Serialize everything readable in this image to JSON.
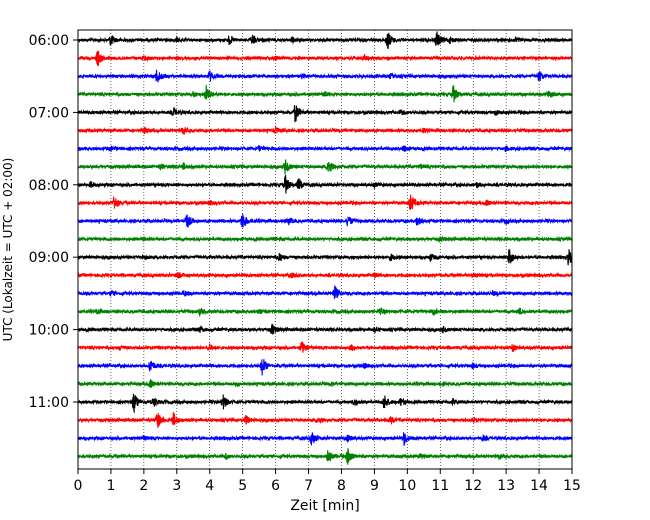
{
  "chart_data": {
    "type": "line",
    "title": "",
    "xlabel": "Zeit  [min]",
    "ylabel": "UTC (Lokalzeit = UTC + 02:00)",
    "xlim": [
      0,
      15
    ],
    "x_ticks": [
      0,
      1,
      2,
      3,
      4,
      5,
      6,
      7,
      8,
      9,
      10,
      11,
      12,
      13,
      14,
      15
    ],
    "x_tick_labels": [
      "0",
      "1",
      "2",
      "3",
      "4",
      "5",
      "6",
      "7",
      "8",
      "9",
      "10",
      "11",
      "12",
      "13",
      "14",
      "15"
    ],
    "y_tick_labels": [
      "06:00",
      "07:00",
      "08:00",
      "09:00",
      "10:00",
      "11:00"
    ],
    "grid": "vertical-dotted",
    "trace_minutes": 15,
    "row_color_cycle": [
      "#000000",
      "#ff0000",
      "#0000ff",
      "#008000"
    ],
    "rows": [
      {
        "start": "06:00",
        "events": [
          [
            1.0,
            0.55
          ],
          [
            3.0,
            0.2
          ],
          [
            4.6,
            0.45
          ],
          [
            5.3,
            0.5
          ],
          [
            6.5,
            0.25
          ],
          [
            9.4,
            1.0
          ],
          [
            10.9,
            0.9
          ],
          [
            11.3,
            0.3
          ],
          [
            13.3,
            0.25
          ]
        ]
      },
      {
        "start": "06:15",
        "events": [
          [
            0.6,
            0.8
          ],
          [
            2.0,
            0.2
          ],
          [
            6.0,
            0.2
          ],
          [
            8.7,
            0.25
          ]
        ]
      },
      {
        "start": "06:30",
        "events": [
          [
            2.4,
            0.7
          ],
          [
            4.0,
            0.55
          ],
          [
            6.8,
            0.2
          ],
          [
            9.5,
            0.2
          ],
          [
            14.0,
            0.55
          ]
        ]
      },
      {
        "start": "06:45",
        "events": [
          [
            3.5,
            0.2
          ],
          [
            3.9,
            0.9
          ],
          [
            7.5,
            0.2
          ],
          [
            11.4,
            0.9
          ],
          [
            14.3,
            0.35
          ]
        ]
      },
      {
        "start": "07:00",
        "events": [
          [
            2.9,
            0.45
          ],
          [
            6.6,
            1.0
          ],
          [
            9.8,
            0.3
          ],
          [
            12.7,
            0.25
          ]
        ]
      },
      {
        "start": "07:15",
        "events": [
          [
            2.0,
            0.3
          ],
          [
            3.2,
            0.45
          ],
          [
            6.0,
            0.3
          ],
          [
            10.5,
            0.2
          ]
        ]
      },
      {
        "start": "07:30",
        "events": [
          [
            1.0,
            0.2
          ],
          [
            5.5,
            0.2
          ],
          [
            9.9,
            0.3
          ],
          [
            13.0,
            0.2
          ]
        ]
      },
      {
        "start": "07:45",
        "events": [
          [
            2.5,
            0.3
          ],
          [
            3.2,
            0.35
          ],
          [
            6.3,
            0.8
          ],
          [
            7.6,
            1.0
          ],
          [
            10.4,
            0.2
          ]
        ]
      },
      {
        "start": "08:00",
        "events": [
          [
            0.4,
            0.3
          ],
          [
            6.3,
            0.95
          ],
          [
            6.7,
            0.6
          ],
          [
            9.0,
            0.2
          ],
          [
            12.1,
            0.25
          ]
        ]
      },
      {
        "start": "08:15",
        "events": [
          [
            1.1,
            0.8
          ],
          [
            4.0,
            0.2
          ],
          [
            10.1,
            1.0
          ],
          [
            12.4,
            0.25
          ]
        ]
      },
      {
        "start": "08:30",
        "events": [
          [
            3.3,
            0.85
          ],
          [
            5.0,
            0.95
          ],
          [
            6.4,
            0.3
          ],
          [
            8.2,
            0.55
          ],
          [
            10.3,
            0.4
          ],
          [
            13.0,
            0.2
          ]
        ]
      },
      {
        "start": "08:45",
        "events": [
          [
            2.0,
            0.15
          ],
          [
            6.0,
            0.15
          ],
          [
            11.0,
            0.15
          ]
        ]
      },
      {
        "start": "09:00",
        "events": [
          [
            2.0,
            0.25
          ],
          [
            6.1,
            0.4
          ],
          [
            9.5,
            0.3
          ],
          [
            10.7,
            0.35
          ],
          [
            13.1,
            0.9
          ],
          [
            14.9,
            0.8
          ]
        ]
      },
      {
        "start": "09:15",
        "events": [
          [
            3.0,
            0.45
          ],
          [
            6.5,
            0.2
          ],
          [
            9.0,
            0.2
          ],
          [
            12.0,
            0.2
          ]
        ]
      },
      {
        "start": "09:30",
        "events": [
          [
            1.0,
            0.2
          ],
          [
            3.2,
            0.25
          ],
          [
            7.8,
            0.75
          ],
          [
            12.6,
            0.2
          ]
        ]
      },
      {
        "start": "09:45",
        "events": [
          [
            0.6,
            0.3
          ],
          [
            3.7,
            0.3
          ],
          [
            5.5,
            0.25
          ],
          [
            9.2,
            0.3
          ],
          [
            10.8,
            0.3
          ],
          [
            13.4,
            0.3
          ]
        ]
      },
      {
        "start": "10:00",
        "events": [
          [
            3.7,
            0.25
          ],
          [
            5.9,
            0.55
          ],
          [
            9.0,
            0.2
          ],
          [
            11.1,
            0.3
          ]
        ]
      },
      {
        "start": "10:15",
        "events": [
          [
            1.3,
            0.2
          ],
          [
            4.0,
            0.3
          ],
          [
            6.8,
            0.6
          ],
          [
            8.3,
            0.3
          ],
          [
            13.2,
            0.3
          ]
        ]
      },
      {
        "start": "10:30",
        "events": [
          [
            2.2,
            0.7
          ],
          [
            5.6,
            1.0
          ],
          [
            8.7,
            0.2
          ],
          [
            12.0,
            0.2
          ]
        ]
      },
      {
        "start": "10:45",
        "events": [
          [
            2.2,
            0.4
          ],
          [
            4.8,
            0.2
          ],
          [
            7.7,
            0.2
          ],
          [
            11.0,
            0.2
          ]
        ]
      },
      {
        "start": "11:00",
        "events": [
          [
            1.7,
            1.0
          ],
          [
            2.3,
            0.5
          ],
          [
            4.4,
            0.8
          ],
          [
            8.4,
            0.35
          ],
          [
            9.3,
            0.8
          ],
          [
            9.8,
            0.4
          ],
          [
            11.4,
            0.3
          ]
        ]
      },
      {
        "start": "11:15",
        "events": [
          [
            2.4,
            1.0
          ],
          [
            2.9,
            0.75
          ],
          [
            5.1,
            0.45
          ],
          [
            7.3,
            0.35
          ],
          [
            9.5,
            0.3
          ],
          [
            12.0,
            0.2
          ]
        ]
      },
      {
        "start": "11:30",
        "events": [
          [
            2.0,
            0.2
          ],
          [
            7.1,
            0.75
          ],
          [
            8.2,
            0.3
          ],
          [
            9.9,
            0.75
          ],
          [
            12.3,
            0.25
          ]
        ]
      },
      {
        "start": "11:45",
        "events": [
          [
            4.5,
            0.25
          ],
          [
            7.6,
            0.6
          ],
          [
            8.2,
            0.9
          ],
          [
            10.4,
            0.2
          ],
          [
            12.8,
            0.25
          ]
        ]
      }
    ]
  }
}
